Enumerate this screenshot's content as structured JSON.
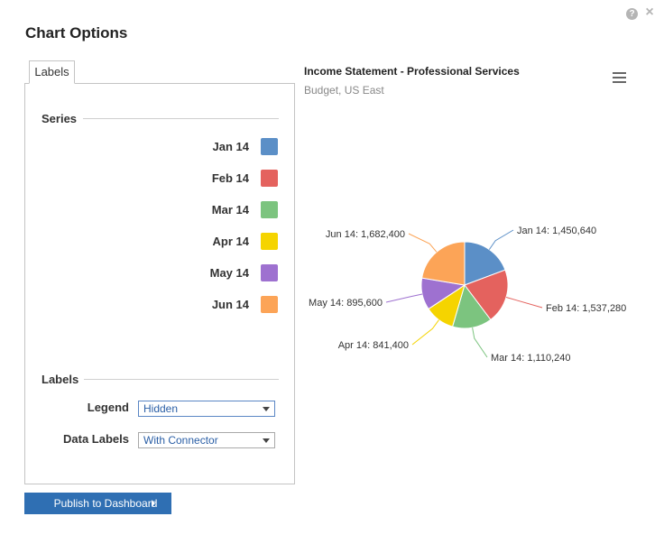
{
  "dialog": {
    "title": "Chart Options",
    "help_icon": "?",
    "close_icon": "×"
  },
  "tabs": [
    {
      "label": "Labels"
    }
  ],
  "series_section": {
    "heading": "Series",
    "items": [
      {
        "label": "Jan 14",
        "color": "#5b8fc7"
      },
      {
        "label": "Feb 14",
        "color": "#e4625e"
      },
      {
        "label": "Mar 14",
        "color": "#7cc47f"
      },
      {
        "label": "Apr 14",
        "color": "#f5d400"
      },
      {
        "label": "May 14",
        "color": "#9e71d0"
      },
      {
        "label": "Jun 14",
        "color": "#fca457"
      }
    ]
  },
  "labels_section": {
    "heading": "Labels",
    "legend": {
      "label": "Legend",
      "value": "Hidden"
    },
    "data_labels": {
      "label": "Data Labels",
      "value": "With Connector"
    }
  },
  "publish_button": {
    "label": "Publish to Dashboard"
  },
  "chart_menu_icon": "hamburger-menu",
  "chart_data": {
    "type": "pie",
    "title": "Income Statement - Professional Services",
    "subtitle": "Budget, US East",
    "legend": "hidden",
    "data_labels": "with connector",
    "slices": [
      {
        "name": "Jan 14",
        "value": 1450640,
        "label": "Jan 14: 1,450,640",
        "color": "#5b8fc7"
      },
      {
        "name": "Feb 14",
        "value": 1537280,
        "label": "Feb 14: 1,537,280",
        "color": "#e4625e"
      },
      {
        "name": "Mar 14",
        "value": 1110240,
        "label": "Mar 14: 1,110,240",
        "color": "#7cc47f"
      },
      {
        "name": "Apr 14",
        "value": 841400,
        "label": "Apr 14: 841,400",
        "color": "#f5d400"
      },
      {
        "name": "May 14",
        "value": 895600,
        "label": "May 14: 895,600",
        "color": "#9e71d0"
      },
      {
        "name": "Jun 14",
        "value": 1682400,
        "label": "Jun 14: 1,682,400",
        "color": "#fca457"
      }
    ]
  }
}
